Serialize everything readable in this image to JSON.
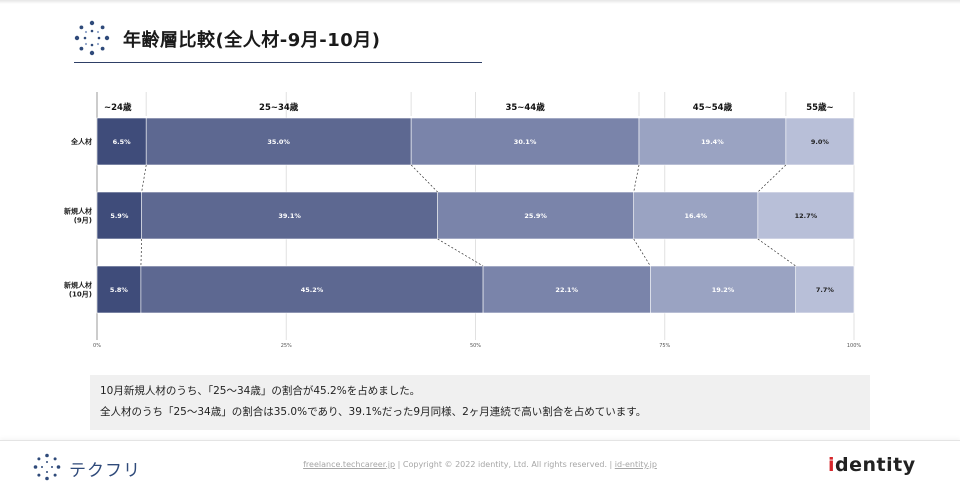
{
  "title": "年齢層比較(全人材-9月-10月)",
  "chart_data": {
    "type": "bar",
    "orientation": "horizontal",
    "stacked": "percent",
    "categories": [
      "全人材",
      "新規人材\n(9月)",
      "新規人材\n(10月)"
    ],
    "series": [
      {
        "name": "~24歳",
        "color": "#3f4c7a",
        "values": [
          6.5,
          5.9,
          5.8
        ]
      },
      {
        "name": "25~34歳",
        "color": "#5d6891",
        "values": [
          35.0,
          39.1,
          45.2
        ]
      },
      {
        "name": "35~44歳",
        "color": "#7a84aa",
        "values": [
          30.1,
          25.9,
          22.1
        ]
      },
      {
        "name": "45~54歳",
        "color": "#9aa3c2",
        "values": [
          19.4,
          16.4,
          19.2
        ]
      },
      {
        "name": "55歳~",
        "color": "#b8bfd8",
        "values": [
          9.0,
          12.7,
          7.7
        ]
      }
    ],
    "data_labels": [
      [
        "6.5%",
        "35.0%",
        "30.1%",
        "19.4%",
        "9.0%"
      ],
      [
        "5.9%",
        "39.1%",
        "25.9%",
        "16.4%",
        "12.7%"
      ],
      [
        "5.8%",
        "45.2%",
        "22.1%",
        "19.2%",
        "7.7%"
      ]
    ],
    "x_ticks": [
      "0%",
      "25%",
      "50%",
      "75%",
      "100%"
    ],
    "xlim": [
      0,
      100
    ],
    "grid": true,
    "legend": "top",
    "connector_lines": true
  },
  "note": {
    "line1": "10月新規人材のうち、「25〜34歳」の割合が45.2%を占めました。",
    "line2": "全人材のうち「25〜34歳」の割合は35.0%であり、39.1%だった9月同様、2ヶ月連続で高い割合を占めています。"
  },
  "footer": {
    "brand": "テクフリ",
    "link1": "freelance.techcareer.jp",
    "sep": " | ",
    "copyright": "Copyright © 2022 identity, Ltd. All rights reserved.",
    "link2": "id-entity.jp",
    "company_prefix": "i",
    "company_rest": "dentity"
  },
  "colors": {
    "accent": "#2e3f66",
    "brand": "#2f4a7a",
    "company_dot": "#d6262b"
  }
}
